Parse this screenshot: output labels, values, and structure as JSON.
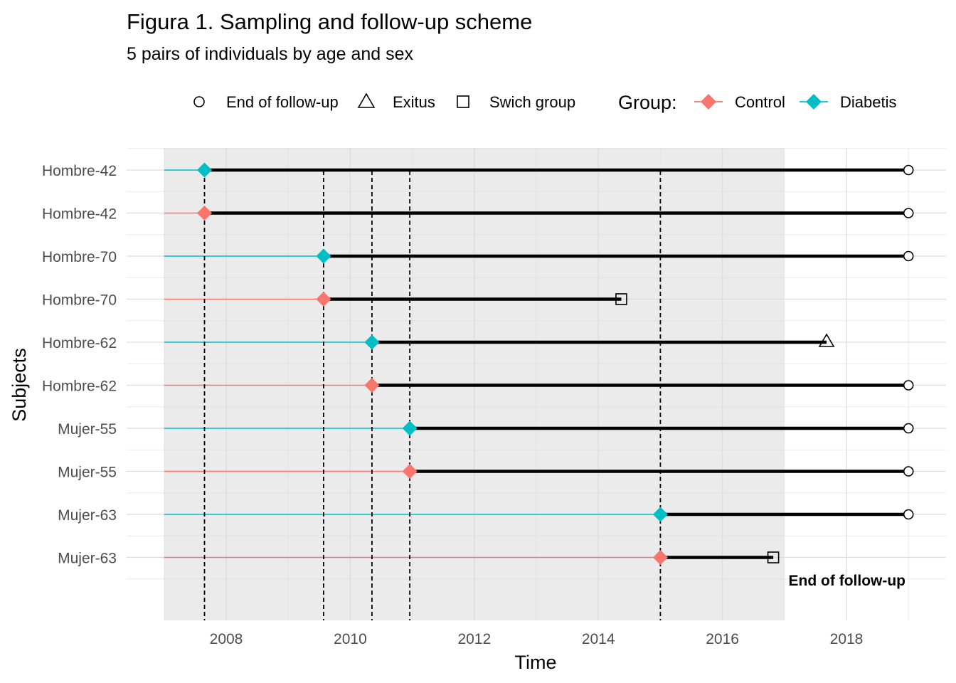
{
  "chart_data": {
    "type": "timeline",
    "title": "Figura 1. Sampling and follow-up scheme",
    "subtitle": "5 pairs of individuals by age and sex",
    "xlabel": "Time",
    "ylabel": "Subjects",
    "xlim": [
      2006.7,
      2019.3
    ],
    "x_ticks": [
      "2008",
      "2010",
      "2012",
      "2014",
      "2016",
      "2018"
    ],
    "x_tick_values": [
      2008,
      2010,
      2012,
      2014,
      2016,
      2018
    ],
    "sampling_window": [
      2007.0,
      2017.0
    ],
    "legend": {
      "placement": "top",
      "shapes": [
        {
          "symbol": "circle",
          "label": "End of follow-up"
        },
        {
          "symbol": "triangle",
          "label": "Exitus"
        },
        {
          "symbol": "square",
          "label": "Swich group"
        }
      ],
      "group_title": "Group:",
      "groups": [
        {
          "label": "Control",
          "color": "#F8766D"
        },
        {
          "label": "Diabetis",
          "color": "#00BFC4"
        }
      ]
    },
    "subjects": [
      {
        "label": "Hombre-42",
        "group": "Diabetis",
        "start": 2007.0,
        "enroll": 2007.65,
        "end": 2019.0,
        "end_event": "circle"
      },
      {
        "label": "Hombre-42",
        "group": "Control",
        "start": 2007.0,
        "enroll": 2007.65,
        "end": 2019.0,
        "end_event": "circle"
      },
      {
        "label": "Hombre-70",
        "group": "Diabetis",
        "start": 2007.0,
        "enroll": 2009.57,
        "end": 2019.0,
        "end_event": "circle"
      },
      {
        "label": "Hombre-70",
        "group": "Control",
        "start": 2007.0,
        "enroll": 2009.57,
        "end": 2014.37,
        "end_event": "square"
      },
      {
        "label": "Hombre-62",
        "group": "Diabetis",
        "start": 2007.0,
        "enroll": 2010.35,
        "end": 2017.68,
        "end_event": "triangle"
      },
      {
        "label": "Hombre-62",
        "group": "Control",
        "start": 2007.0,
        "enroll": 2010.35,
        "end": 2019.0,
        "end_event": "circle"
      },
      {
        "label": "Mujer-55",
        "group": "Diabetis",
        "start": 2007.0,
        "enroll": 2010.96,
        "end": 2019.0,
        "end_event": "circle"
      },
      {
        "label": "Mujer-55",
        "group": "Control",
        "start": 2007.0,
        "enroll": 2010.96,
        "end": 2019.0,
        "end_event": "circle"
      },
      {
        "label": "Mujer-63",
        "group": "Diabetis",
        "start": 2007.0,
        "enroll": 2015.0,
        "end": 2019.0,
        "end_event": "circle"
      },
      {
        "label": "Mujer-63",
        "group": "Control",
        "start": 2007.0,
        "enroll": 2015.0,
        "end": 2016.82,
        "end_event": "square"
      }
    ],
    "enrollment_lines": [
      2007.65,
      2009.57,
      2010.35,
      2010.96,
      2015.0
    ],
    "annotation": "End of follow-up",
    "grid": true
  }
}
